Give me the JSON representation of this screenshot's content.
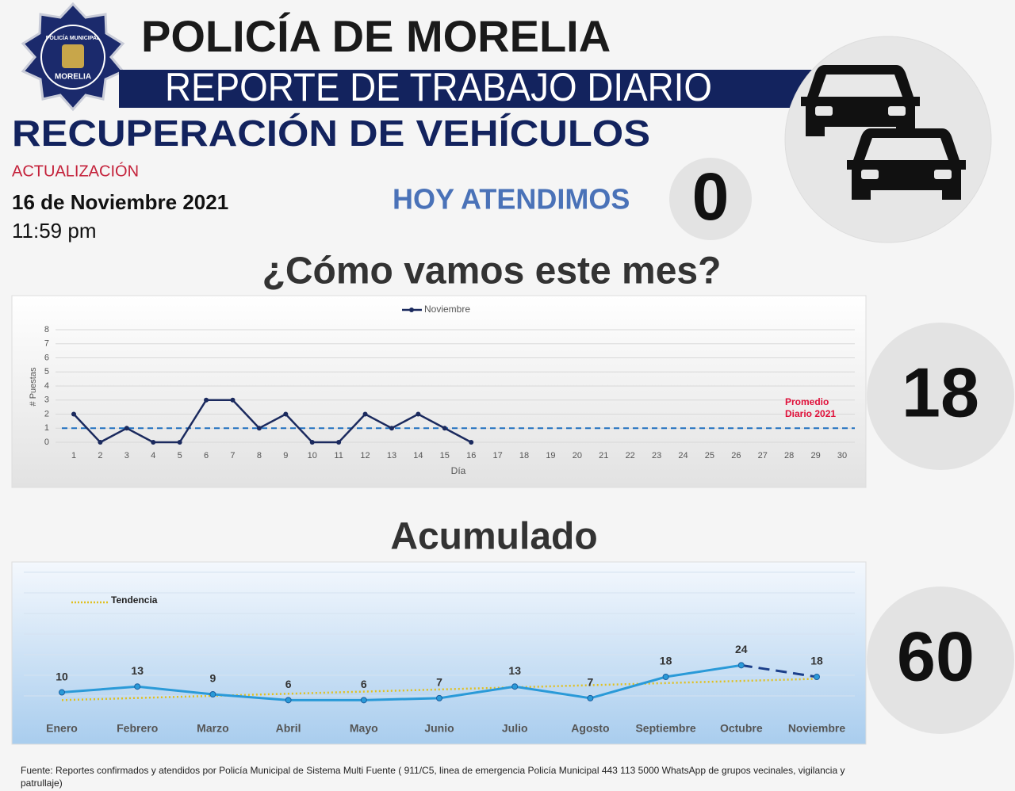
{
  "header": {
    "badge_top": "POLICÍA MUNICIPAL",
    "badge_bottom": "MORELIA",
    "title": "POLICÍA DE MORELIA",
    "banner": "REPORTE DE TRABAJO DIARIO",
    "section": "RECUPERACIÓN DE VEHÍCULOS",
    "update_label": "ACTUALIZACIÓN",
    "date": "16 de Noviembre 2021",
    "time": "11:59 pm"
  },
  "today": {
    "label": "HOY ATENDIMOS",
    "value": 0
  },
  "month_heading": "¿Cómo vamos este mes?",
  "month_total": 18,
  "accumulated_heading": "Acumulado",
  "accumulated_total": 60,
  "chart_data": [
    {
      "type": "line",
      "xlabel": "Día",
      "ylabel": "# Puestas",
      "x": [
        1,
        2,
        3,
        4,
        5,
        6,
        7,
        8,
        9,
        10,
        11,
        12,
        13,
        14,
        15,
        16,
        17,
        18,
        19,
        20,
        21,
        22,
        23,
        24,
        25,
        26,
        27,
        28,
        29,
        30
      ],
      "xlim": [
        1,
        30
      ],
      "xticks": [
        1,
        2,
        3,
        4,
        5,
        6,
        7,
        8,
        9,
        10,
        11,
        12,
        13,
        14,
        15,
        16,
        17,
        18,
        19,
        20,
        21,
        22,
        23,
        24,
        25,
        26,
        27,
        28,
        29,
        30
      ],
      "ylim": [
        0,
        8
      ],
      "yticks": [
        0,
        1,
        2,
        3,
        4,
        5,
        6,
        7,
        8
      ],
      "grid": true,
      "series": [
        {
          "name": "Noviembre",
          "color": "#1b2a5e",
          "values": [
            2,
            0,
            1,
            0,
            0,
            3,
            3,
            1,
            2,
            0,
            0,
            2,
            1,
            2,
            1,
            0,
            null,
            null,
            null,
            null,
            null,
            null,
            null,
            null,
            null,
            null,
            null,
            null,
            null,
            null
          ]
        }
      ],
      "reference_line": {
        "label": "Promedio Diario 2021",
        "value": 1,
        "color": "#1f6fc0",
        "label_color": "#e0103a"
      }
    },
    {
      "type": "line",
      "categories": [
        "Enero",
        "Febrero",
        "Marzo",
        "Abril",
        "Mayo",
        "Junio",
        "Julio",
        "Agosto",
        "Septiembre",
        "Octubre",
        "Noviembre"
      ],
      "ylim": [
        0,
        72
      ],
      "series": [
        {
          "color": "#2a9ad8",
          "last_segment_color": "#1b3f8a",
          "values": [
            10,
            13,
            9,
            6,
            6,
            7,
            13,
            7,
            18,
            24,
            18
          ]
        },
        {
          "name": "Tendencia",
          "color": "#e0c020",
          "values": [
            6,
            7.1,
            8.2,
            9.3,
            10.4,
            11.5,
            12.6,
            13.7,
            14.8,
            15.9,
            17
          ]
        }
      ]
    }
  ],
  "footer": "Fuente: Reportes confirmados y atendidos por Policía Municipal de Sistema Multi Fuente ( 911/C5, linea de emergencia Policía Municipal 443 113 5000 WhatsApp de grupos vecinales, vigilancia y patrullaje)"
}
